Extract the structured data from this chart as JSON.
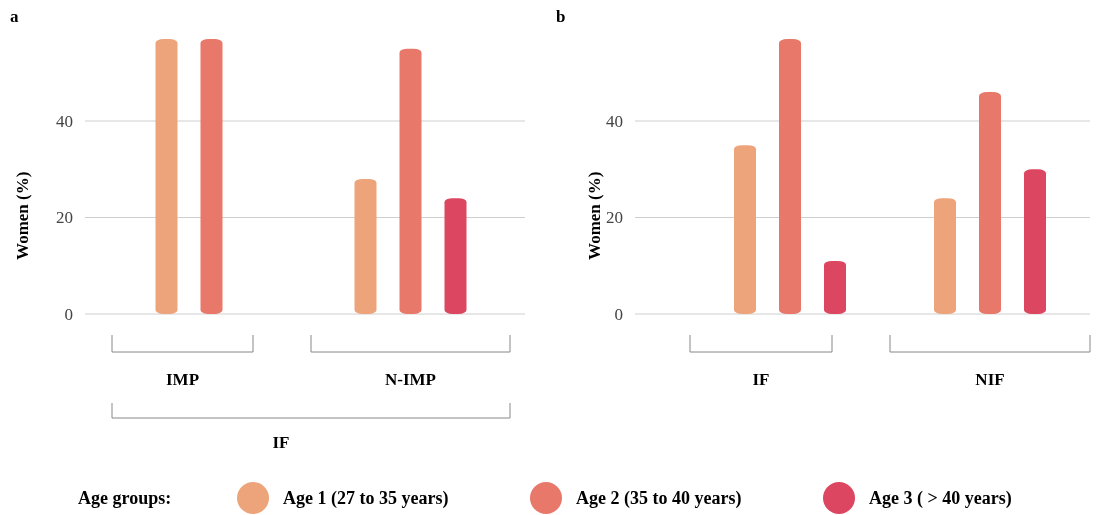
{
  "chart_data": [
    {
      "type": "bar",
      "title": "a",
      "ylabel": "Women (%)",
      "xlabel": "IF",
      "categories": [
        "IMP",
        "N-IMP"
      ],
      "ylim": [
        0,
        57
      ],
      "yticks": [
        0,
        20,
        40
      ],
      "grid": "y",
      "legend": "bottom",
      "legend_title": "Age groups:",
      "series": [
        {
          "name": "Age 1 (27 to 35 years)",
          "color": "#eda47a",
          "values": [
            57,
            28
          ]
        },
        {
          "name": "Age 2 (35 to 40 years)",
          "color": "#e7786a",
          "values": [
            57,
            55
          ]
        },
        {
          "name": "Age 3 ( > 40 years)",
          "color": "#dc4660",
          "values": [
            null,
            24
          ]
        }
      ]
    },
    {
      "type": "bar",
      "title": "b",
      "ylabel": "Women (%)",
      "categories": [
        "IF",
        "NIF"
      ],
      "ylim": [
        0,
        57
      ],
      "yticks": [
        0,
        20,
        40
      ],
      "grid": "y",
      "series": [
        {
          "color": "#eda47a",
          "values": [
            35,
            24
          ]
        },
        {
          "color": "#e7786a",
          "values": [
            57,
            46
          ]
        },
        {
          "color": "#dc4660",
          "values": [
            11,
            30
          ]
        }
      ]
    }
  ]
}
